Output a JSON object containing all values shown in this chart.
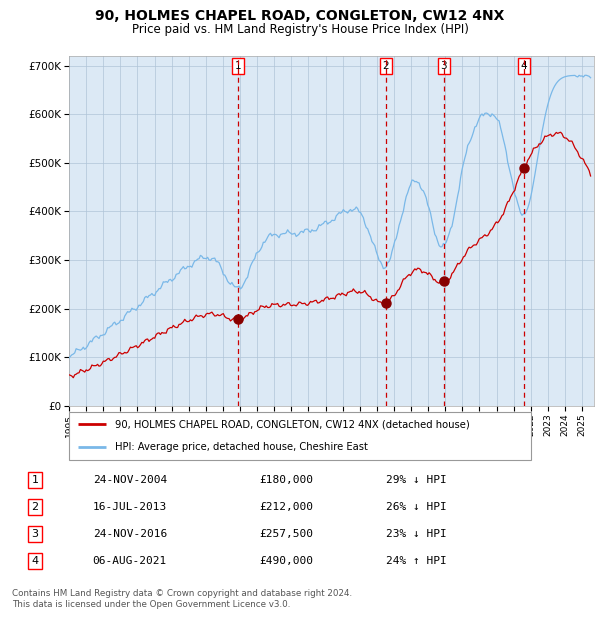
{
  "title": "90, HOLMES CHAPEL ROAD, CONGLETON, CW12 4NX",
  "subtitle": "Price paid vs. HM Land Registry's House Price Index (HPI)",
  "title_fontsize": 10,
  "subtitle_fontsize": 8.5,
  "background_color": "#ffffff",
  "plot_bg_color": "#dce9f5",
  "ylim": [
    0,
    720000
  ],
  "yticks": [
    0,
    100000,
    200000,
    300000,
    400000,
    500000,
    600000,
    700000
  ],
  "ytick_labels": [
    "£0",
    "£100K",
    "£200K",
    "£300K",
    "£400K",
    "£500K",
    "£600K",
    "£700K"
  ],
  "xlim_start": 1995.0,
  "xlim_end": 2025.7,
  "hpi_color": "#7ab8e8",
  "price_color": "#cc0000",
  "sale_marker_color": "#880000",
  "sale_dates": [
    2004.9,
    2013.54,
    2016.92,
    2021.59
  ],
  "sale_prices": [
    180000,
    212000,
    257500,
    490000
  ],
  "sale_labels": [
    "1",
    "2",
    "3",
    "4"
  ],
  "legend_entries": [
    "90, HOLMES CHAPEL ROAD, CONGLETON, CW12 4NX (detached house)",
    "HPI: Average price, detached house, Cheshire East"
  ],
  "table_rows": [
    {
      "num": "1",
      "date": "24-NOV-2004",
      "price": "£180,000",
      "hpi": "29% ↓ HPI"
    },
    {
      "num": "2",
      "date": "16-JUL-2013",
      "price": "£212,000",
      "hpi": "26% ↓ HPI"
    },
    {
      "num": "3",
      "date": "24-NOV-2016",
      "price": "£257,500",
      "hpi": "23% ↓ HPI"
    },
    {
      "num": "4",
      "date": "06-AUG-2021",
      "price": "£490,000",
      "hpi": "24% ↑ HPI"
    }
  ],
  "footer": "Contains HM Land Registry data © Crown copyright and database right 2024.\nThis data is licensed under the Open Government Licence v3.0.",
  "grid_color": "#b0c4d8",
  "dashed_vline_color": "#cc0000"
}
